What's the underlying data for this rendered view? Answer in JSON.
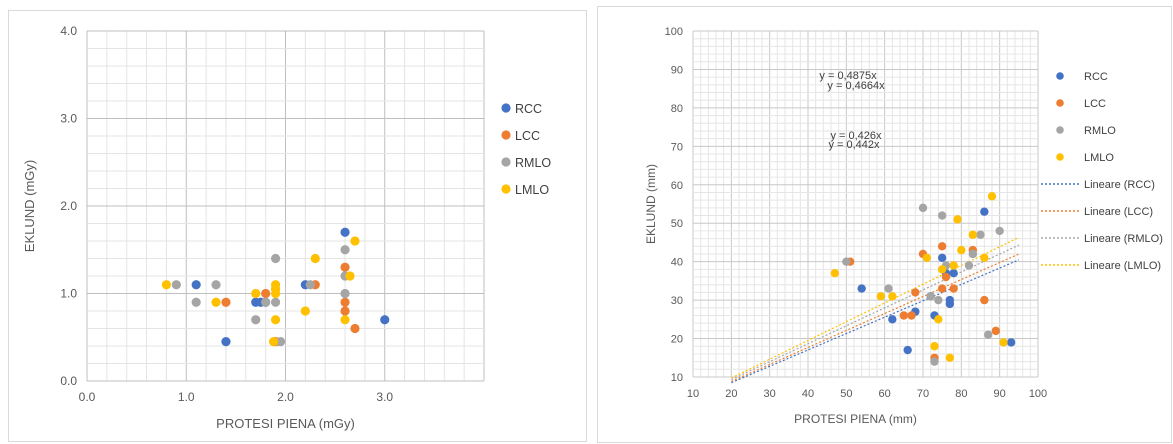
{
  "colors": {
    "RCC": "#4472c4",
    "LCC": "#ed7d31",
    "RMLO": "#a5a5a5",
    "LMLO": "#ffc000"
  },
  "chart_data": [
    {
      "type": "scatter",
      "xlabel": "PROTESI PIENA (mGy)",
      "ylabel": "EKLUND (mGy)",
      "xlim": [
        0,
        4
      ],
      "ylim": [
        0,
        4
      ],
      "xticks": [
        "0.0",
        "1.0",
        "2.0",
        "3.0"
      ],
      "yticks": [
        "0.0",
        "1.0",
        "2.0",
        "3.0",
        "4.0"
      ],
      "xtick_values": [
        0,
        1,
        2,
        3
      ],
      "ytick_values": [
        0,
        1,
        2,
        3,
        4
      ],
      "grid": true,
      "legend_position": "right",
      "series": [
        {
          "name": "RCC",
          "points": [
            [
              1.1,
              1.1
            ],
            [
              1.4,
              0.45
            ],
            [
              1.7,
              0.9
            ],
            [
              1.75,
              0.9
            ],
            [
              1.8,
              0.9
            ],
            [
              2.2,
              1.1
            ],
            [
              2.6,
              1.7
            ],
            [
              3.0,
              0.7
            ]
          ]
        },
        {
          "name": "LCC",
          "points": [
            [
              1.4,
              0.9
            ],
            [
              1.8,
              1.0
            ],
            [
              1.9,
              0.45
            ],
            [
              2.3,
              1.1
            ],
            [
              2.6,
              1.3
            ],
            [
              2.6,
              0.9
            ],
            [
              2.6,
              0.8
            ],
            [
              2.7,
              0.6
            ]
          ]
        },
        {
          "name": "RMLO",
          "points": [
            [
              0.9,
              1.1
            ],
            [
              1.1,
              0.9
            ],
            [
              1.3,
              1.1
            ],
            [
              1.7,
              0.7
            ],
            [
              1.8,
              0.9
            ],
            [
              1.9,
              1.4
            ],
            [
              1.9,
              0.9
            ],
            [
              1.95,
              0.45
            ],
            [
              2.25,
              1.1
            ],
            [
              2.6,
              1.5
            ],
            [
              2.6,
              1.0
            ],
            [
              2.6,
              1.2
            ]
          ]
        },
        {
          "name": "LMLO",
          "points": [
            [
              0.8,
              1.1
            ],
            [
              1.3,
              0.9
            ],
            [
              1.7,
              1.0
            ],
            [
              1.9,
              1.1
            ],
            [
              1.9,
              1.05
            ],
            [
              1.9,
              1.0
            ],
            [
              1.9,
              0.7
            ],
            [
              1.88,
              0.45
            ],
            [
              2.2,
              0.8
            ],
            [
              2.3,
              1.4
            ],
            [
              2.6,
              0.7
            ],
            [
              2.65,
              1.2
            ],
            [
              2.7,
              1.6
            ]
          ]
        }
      ]
    },
    {
      "type": "scatter",
      "xlabel": "PROTESI PIENA (mm)",
      "ylabel": "EKLUND (mm)",
      "xlim": [
        10,
        100
      ],
      "ylim": [
        10,
        100
      ],
      "xticks": [
        "10",
        "20",
        "30",
        "40",
        "50",
        "60",
        "70",
        "80",
        "90",
        "100"
      ],
      "yticks": [
        "10",
        "20",
        "30",
        "40",
        "50",
        "60",
        "70",
        "80",
        "90",
        "100"
      ],
      "xtick_values": [
        10,
        20,
        30,
        40,
        50,
        60,
        70,
        80,
        90,
        100
      ],
      "ytick_values": [
        10,
        20,
        30,
        40,
        50,
        60,
        70,
        80,
        90,
        100
      ],
      "grid": true,
      "legend_position": "right",
      "equations": [
        {
          "text": "y = 0,4875x",
          "pos": "upper"
        },
        {
          "text": "y = 0,4664x",
          "pos": "upper"
        },
        {
          "text": "y = 0,426x",
          "pos": "middle"
        },
        {
          "text": "y = 0,442x",
          "pos": "middle"
        }
      ],
      "series": [
        {
          "name": "RCC",
          "points": [
            [
              54,
              33
            ],
            [
              62,
              25
            ],
            [
              66,
              17
            ],
            [
              68,
              27
            ],
            [
              72,
              31
            ],
            [
              73,
              26
            ],
            [
              75,
              41
            ],
            [
              76,
              37
            ],
            [
              77,
              30
            ],
            [
              77,
              29
            ],
            [
              78,
              37
            ],
            [
              86,
              53
            ],
            [
              93,
              19
            ]
          ]
        },
        {
          "name": "LCC",
          "points": [
            [
              51,
              40
            ],
            [
              65,
              26
            ],
            [
              67,
              26
            ],
            [
              68,
              32
            ],
            [
              70,
              42
            ],
            [
              73,
              15
            ],
            [
              75,
              44
            ],
            [
              75,
              33
            ],
            [
              76,
              36
            ],
            [
              78,
              33
            ],
            [
              83,
              43
            ],
            [
              86,
              30
            ],
            [
              89,
              22
            ]
          ]
        },
        {
          "name": "RMLO",
          "points": [
            [
              50,
              40
            ],
            [
              61,
              33
            ],
            [
              70,
              54
            ],
            [
              72,
              31
            ],
            [
              73,
              14
            ],
            [
              74,
              30
            ],
            [
              75,
              52
            ],
            [
              76,
              39
            ],
            [
              82,
              39
            ],
            [
              83,
              42
            ],
            [
              85,
              47
            ],
            [
              87,
              21
            ],
            [
              90,
              48
            ]
          ]
        },
        {
          "name": "LMLO",
          "points": [
            [
              47,
              37
            ],
            [
              59,
              31
            ],
            [
              62,
              31
            ],
            [
              71,
              41
            ],
            [
              73,
              18
            ],
            [
              74,
              25
            ],
            [
              75,
              38
            ],
            [
              77,
              15
            ],
            [
              78,
              39
            ],
            [
              79,
              51
            ],
            [
              80,
              43
            ],
            [
              83,
              47
            ],
            [
              86,
              41
            ],
            [
              88,
              57
            ],
            [
              91,
              19
            ]
          ]
        }
      ],
      "trendlines": [
        {
          "name": "Lineare (RCC)",
          "slope": 0.426
        },
        {
          "name": "Lineare (LCC)",
          "slope": 0.442
        },
        {
          "name": "Lineare (RMLO)",
          "slope": 0.4664
        },
        {
          "name": "Lineare (LMLO)",
          "slope": 0.4875
        }
      ],
      "legend": [
        "RCC",
        "LCC",
        "RMLO",
        "LMLO",
        "Lineare (RCC)",
        "Lineare (LCC)",
        "Lineare (RMLO)",
        "Lineare (LMLO)"
      ]
    }
  ]
}
